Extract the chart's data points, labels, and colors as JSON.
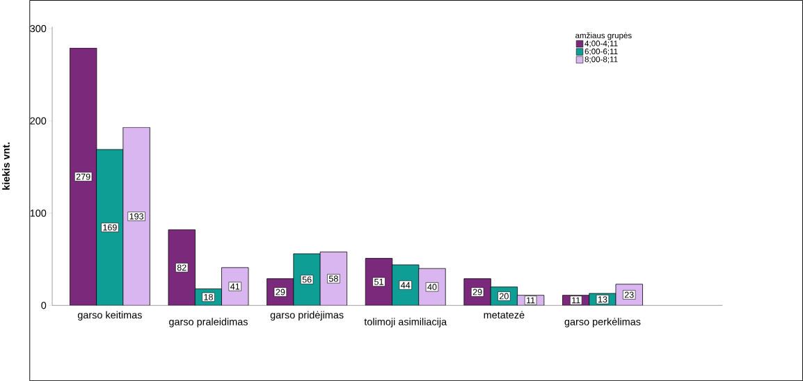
{
  "chart_data": {
    "type": "bar",
    "ylabel": "kiekis vnt.",
    "legend_title": "amžiaus grupės",
    "categories": [
      "garso keitimas",
      "garso praleidimas",
      "garso pridėjimas",
      "tolimoji asimiliacija",
      "metatezė",
      "garso perkėlimas"
    ],
    "series": [
      {
        "name": "4;00-4;11",
        "color": "#7b2a7b",
        "values": [
          279,
          82,
          29,
          51,
          29,
          11
        ]
      },
      {
        "name": "6;00-6;11",
        "color": "#0e9e96",
        "values": [
          169,
          18,
          56,
          44,
          20,
          13
        ]
      },
      {
        "name": "8;00-8;11",
        "color": "#dab6f0",
        "values": [
          193,
          41,
          58,
          40,
          11,
          23
        ]
      }
    ],
    "ylim": [
      0,
      302
    ],
    "yticks": [
      0,
      100,
      200,
      300
    ],
    "data_labels": true,
    "legend": "top right",
    "grid": false
  }
}
